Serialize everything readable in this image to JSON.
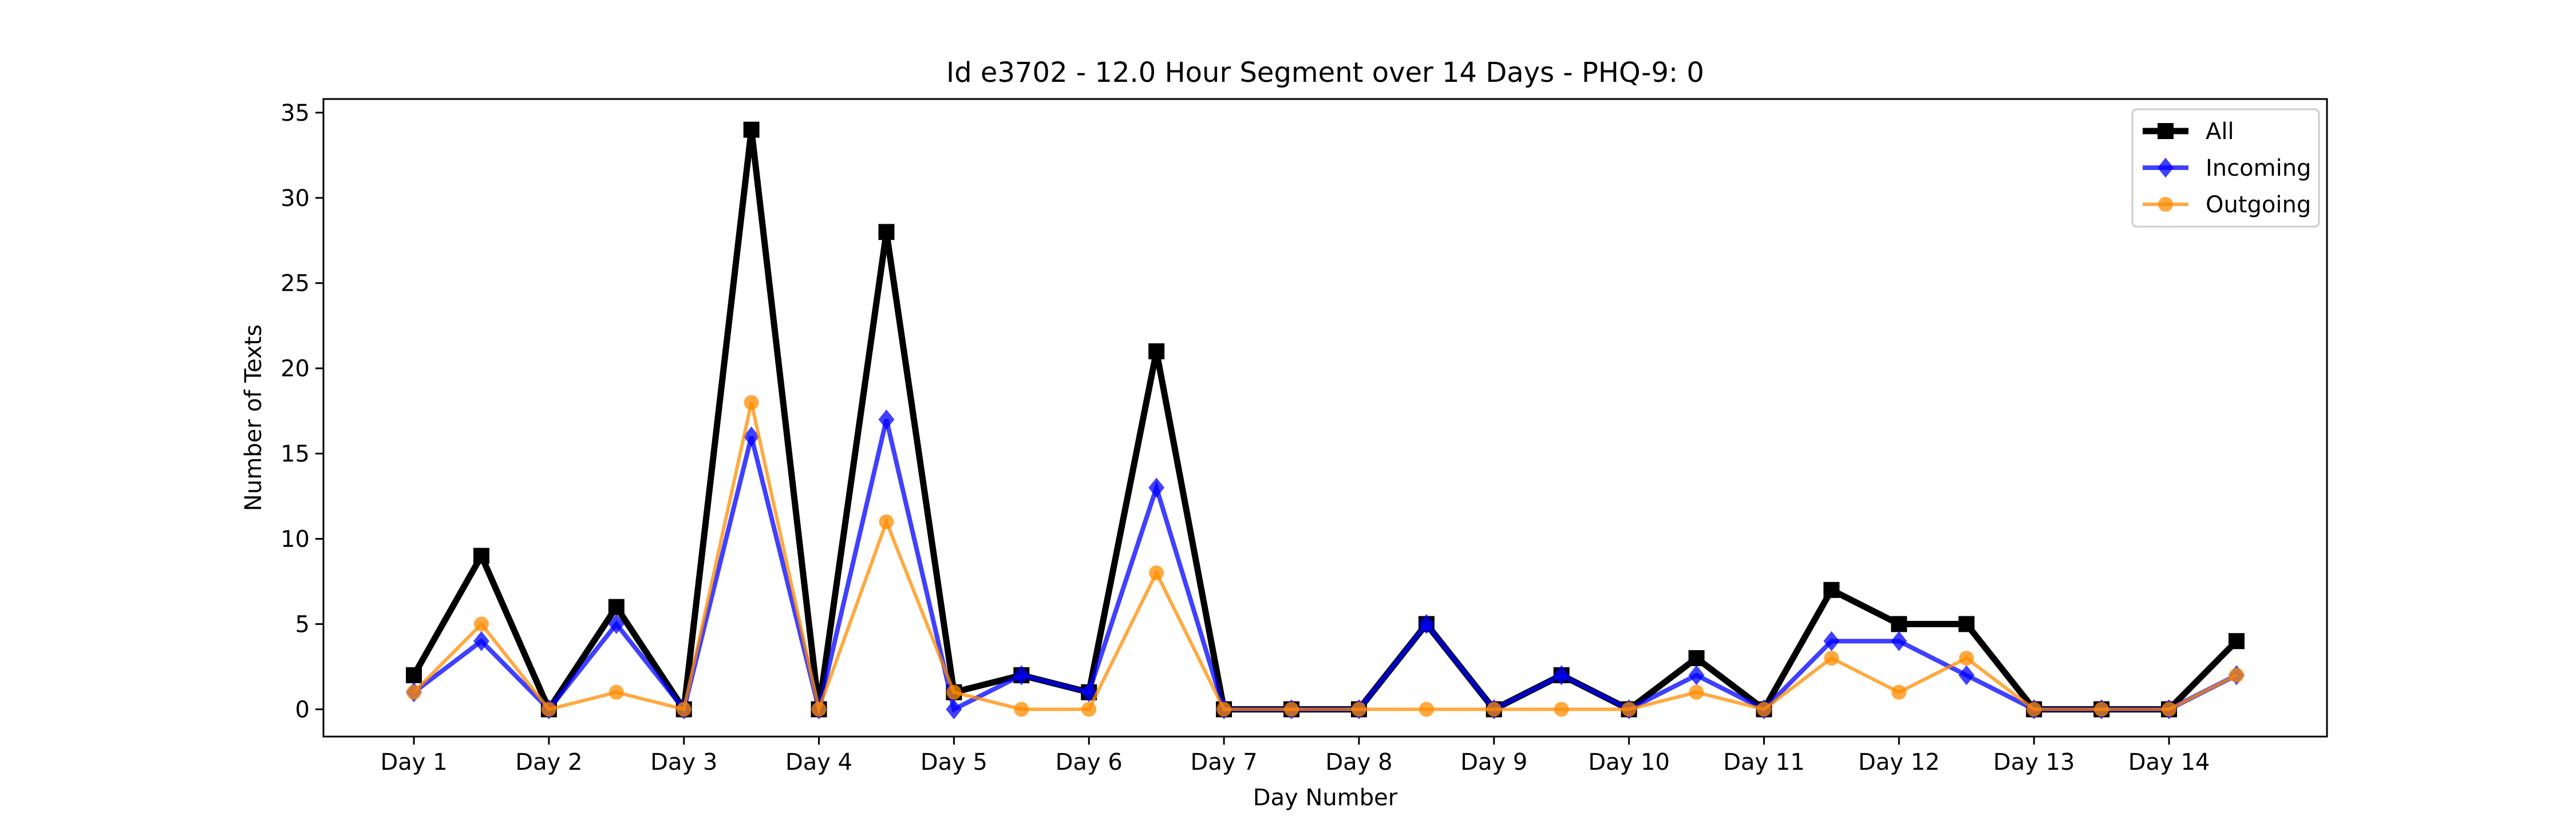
{
  "chart_data": {
    "type": "line",
    "title": "Id e3702 - 12.0 Hour Segment over 14 Days - PHQ-9: 0",
    "xlabel": "Day Number",
    "ylabel": "Number of Texts",
    "ylim": [
      -1.6,
      35.8
    ],
    "yticks": [
      0,
      5,
      10,
      15,
      20,
      25,
      30,
      35
    ],
    "xlim": [
      0.33,
      15.17
    ],
    "x": [
      1,
      1.5,
      2,
      2.5,
      3,
      3.5,
      4,
      4.5,
      5,
      5.5,
      6,
      6.5,
      7,
      7.5,
      8,
      8.5,
      9,
      9.5,
      10,
      10.5,
      11,
      11.5,
      12,
      12.5,
      13,
      13.5,
      14,
      14.5
    ],
    "x_tick_labels": [
      {
        "value": 1,
        "label": "Day 1"
      },
      {
        "value": 2,
        "label": "Day 2"
      },
      {
        "value": 3,
        "label": "Day 3"
      },
      {
        "value": 4,
        "label": "Day 4"
      },
      {
        "value": 5,
        "label": "Day 5"
      },
      {
        "value": 6,
        "label": "Day 6"
      },
      {
        "value": 7,
        "label": "Day 7"
      },
      {
        "value": 8,
        "label": "Day 8"
      },
      {
        "value": 9,
        "label": "Day 9"
      },
      {
        "value": 10,
        "label": "Day 10"
      },
      {
        "value": 11,
        "label": "Day 11"
      },
      {
        "value": 12,
        "label": "Day 12"
      },
      {
        "value": 13,
        "label": "Day 13"
      },
      {
        "value": 14,
        "label": "Day 14"
      }
    ],
    "grid": false,
    "legend_position": "top-right",
    "series": [
      {
        "name": "All",
        "color": "#000000",
        "marker": "square",
        "values": [
          2,
          9,
          0,
          6,
          0,
          34,
          0,
          28,
          1,
          2,
          1,
          21,
          0,
          0,
          0,
          5,
          0,
          2,
          0,
          3,
          0,
          7,
          5,
          5,
          0,
          0,
          0,
          4
        ]
      },
      {
        "name": "Incoming",
        "color": "#0000ff",
        "marker": "diamond",
        "values": [
          1,
          4,
          0,
          5,
          0,
          16,
          0,
          17,
          0,
          2,
          1,
          13,
          0,
          0,
          0,
          5,
          0,
          2,
          0,
          2,
          0,
          4,
          4,
          2,
          0,
          0,
          0,
          2
        ]
      },
      {
        "name": "Outgoing",
        "color": "#ff8c00",
        "marker": "circle",
        "values": [
          1,
          5,
          0,
          1,
          0,
          18,
          0,
          11,
          1,
          0,
          0,
          8,
          0,
          0,
          0,
          0,
          0,
          0,
          0,
          1,
          0,
          3,
          1,
          3,
          0,
          0,
          0,
          2
        ]
      }
    ]
  }
}
